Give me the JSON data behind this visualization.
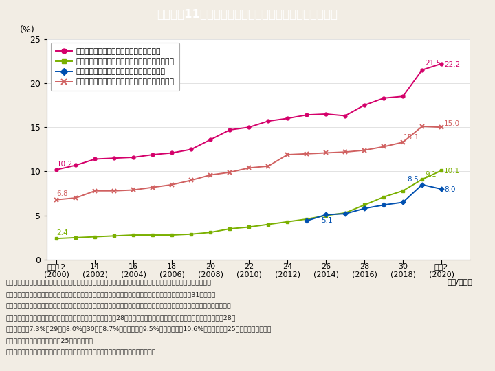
{
  "title": "Ｉ－１－11図　各種メディアにおける女性の割合の推移",
  "title_color": "#ffffff",
  "title_bg_color": "#40b8d0",
  "bg_color": "#f2ede4",
  "plot_bg_color": "#ffffff",
  "years": [
    2000,
    2001,
    2002,
    2003,
    2004,
    2005,
    2006,
    2007,
    2008,
    2009,
    2010,
    2011,
    2012,
    2013,
    2014,
    2015,
    2016,
    2017,
    2018,
    2019,
    2020
  ],
  "xtick_labels_top": [
    "平成12",
    "14",
    "16",
    "18",
    "20",
    "22",
    "24",
    "26",
    "28",
    "30",
    "令和2"
  ],
  "xtick_labels_bot": [
    "(2000)",
    "(2002)",
    "(2004)",
    "(2006)",
    "(2008)",
    "(2010)",
    "(2012)",
    "(2014)",
    "(2016)",
    "(2018)",
    "(2020)"
  ],
  "xtick_positions": [
    2000,
    2002,
    2004,
    2006,
    2008,
    2010,
    2012,
    2014,
    2016,
    2018,
    2020
  ],
  "series1_label": "新聞社・通信社の記者に占める女性の割合",
  "series1_color": "#d4006a",
  "series1_marker": "o",
  "series1_data": [
    10.2,
    10.7,
    11.4,
    11.5,
    11.6,
    11.9,
    12.1,
    12.5,
    13.6,
    14.7,
    15.0,
    15.7,
    16.0,
    16.4,
    16.5,
    16.3,
    17.5,
    18.3,
    18.5,
    21.5,
    22.2
  ],
  "series2_label": "日本放送協会における管理職に占める女性の割合",
  "series2_color": "#7ab000",
  "series2_marker": "s",
  "series2_data": [
    2.4,
    2.5,
    2.6,
    2.7,
    2.8,
    2.8,
    2.8,
    2.9,
    3.1,
    3.5,
    3.7,
    4.0,
    4.3,
    4.6,
    5.0,
    5.3,
    6.2,
    7.1,
    7.8,
    9.1,
    10.1
  ],
  "series3_label": "新聞社・通信社の管理職に占める女性の割合",
  "series3_color": "#0050b0",
  "series3_marker": "D",
  "series3_data": [
    null,
    null,
    null,
    null,
    null,
    null,
    null,
    null,
    null,
    null,
    null,
    null,
    null,
    4.4,
    5.1,
    5.2,
    5.8,
    6.2,
    6.5,
    8.5,
    8.0
  ],
  "series4_label": "民間放送各社における管理職に占める女性の割合",
  "series4_color": "#d06060",
  "series4_marker": "x",
  "series4_data": [
    6.8,
    7.0,
    7.8,
    7.8,
    7.9,
    8.2,
    8.5,
    9.0,
    9.6,
    9.9,
    10.4,
    10.6,
    11.9,
    12.0,
    12.1,
    12.2,
    12.4,
    12.8,
    13.3,
    15.1,
    15.0
  ],
  "ylim": [
    0,
    25
  ],
  "yticks": [
    0,
    5,
    10,
    15,
    20,
    25
  ],
  "ylabel": "(%)",
  "xlabel_bottom": "（年/年度）",
  "notes": [
    "（備考）１．一般社団法人日本新聞協会資料，日本放送協会資料及び一般社団法人日本民間放送連盟資料より作成。",
    "　　　　２．新聞社・通信社は各年４月１日現在，日本放送協会は各年度の値，民間放送各社は各年７月31日現在。",
    "　　　　３．日本放送協会における管理職は，組織単位の長及び必要に応じて置く職位（チーフプロデューサー，エグゼクティ",
    "　　　　　ブディレクター等）。なお，日本放送協会では平成28年から関連団体等への出向者を含む数値で公表。（平成28年",
    "　　　　　は7.3%，29年は8.0%，30年は8.7%，令和元年は9.5%，令和２年は10.6%）また，平成25年までは専門職を含",
    "　　　　　む値（専門職は平成25年で廃止）。",
    "　　　　４．民間放送各社における管理職は，課長級以上の職で，現業役員を含む。"
  ]
}
